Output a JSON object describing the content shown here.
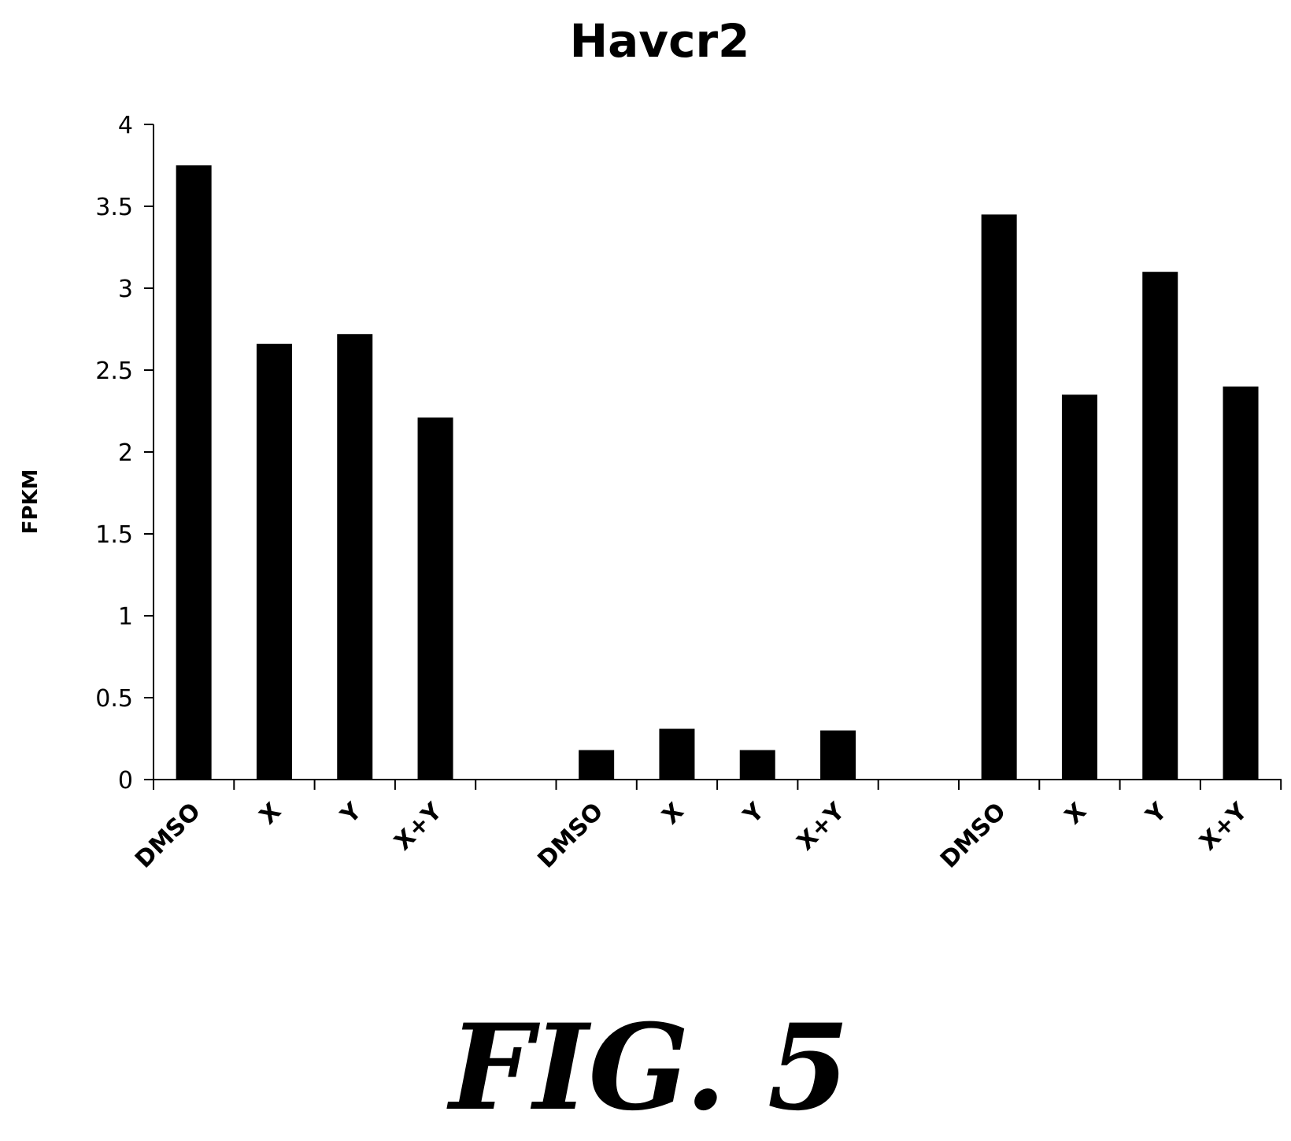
{
  "figure": {
    "caption": "FIG. 5"
  },
  "chart_data": {
    "type": "bar",
    "title": "Havcr2",
    "xlabel": "",
    "ylabel": "FPKM",
    "ylim": [
      0,
      4
    ],
    "yticks": [
      0,
      0.5,
      1,
      1.5,
      2,
      2.5,
      3,
      3.5,
      4
    ],
    "ytick_labels": [
      "0",
      "0.5",
      "1",
      "1.5",
      "2",
      "2.5",
      "3",
      "3.5",
      "4"
    ],
    "categories": [
      "DMSO",
      "X",
      "Y",
      "X+Y",
      "",
      "DMSO",
      "X",
      "Y",
      "X+Y",
      "",
      "DMSO",
      "X",
      "Y",
      "X+Y"
    ],
    "values": [
      3.75,
      2.66,
      2.72,
      2.21,
      null,
      0.18,
      0.31,
      0.18,
      0.3,
      null,
      3.45,
      2.35,
      3.1,
      2.4
    ],
    "bar_color": "#000000",
    "grid": false,
    "legend": "none"
  }
}
